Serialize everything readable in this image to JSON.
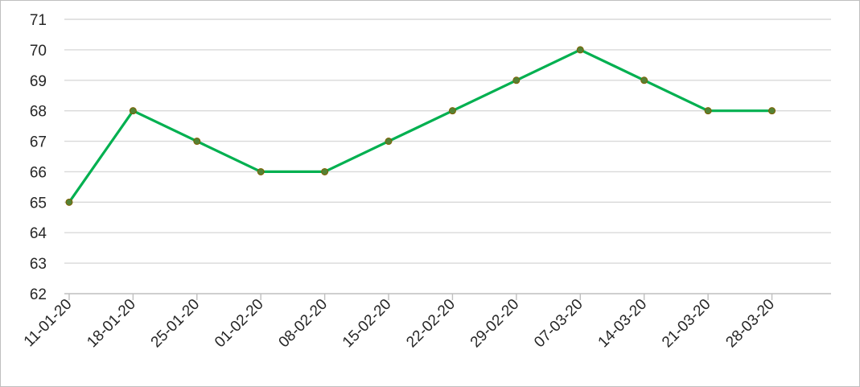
{
  "chart_data": {
    "type": "line",
    "title": "",
    "xlabel": "",
    "ylabel": "",
    "x": [
      "11-01-20",
      "18-01-20",
      "25-01-20",
      "01-02-20",
      "08-02-20",
      "15-02-20",
      "22-02-20",
      "29-02-20",
      "07-03-20",
      "14-03-20",
      "21-03-20",
      "28-03-20"
    ],
    "series": [
      {
        "values": [
          65,
          68,
          67,
          66,
          66,
          67,
          68,
          69,
          70,
          69,
          68,
          68
        ]
      }
    ],
    "ylim": [
      62,
      71
    ],
    "yticks": [
      62,
      63,
      64,
      65,
      66,
      67,
      68,
      69,
      70,
      71
    ],
    "grid": true,
    "legend": "none",
    "colors": {
      "line": "#00b050",
      "marker": "#548235",
      "marker_edge": "#7f6000"
    }
  }
}
